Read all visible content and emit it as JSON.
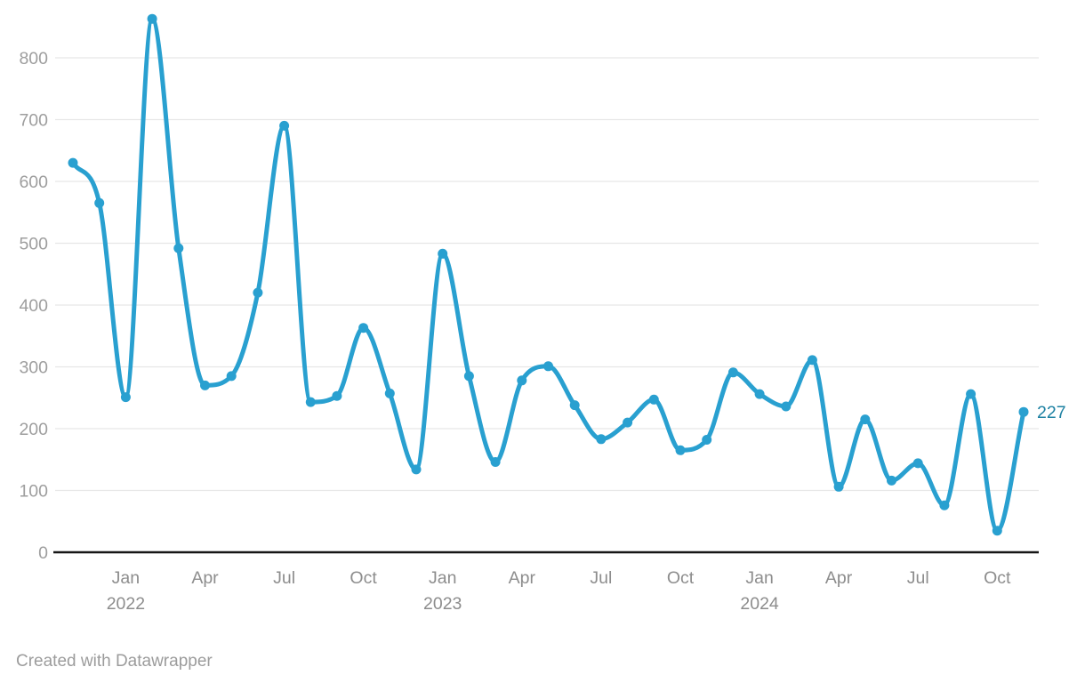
{
  "chart_data": {
    "type": "line",
    "title": "",
    "xlabel": "",
    "ylabel": "",
    "x": [
      "Nov 2021",
      "Dec 2021",
      "Jan 2022",
      "Feb 2022",
      "Mar 2022",
      "Apr 2022",
      "May 2022",
      "Jun 2022",
      "Jul 2022",
      "Aug 2022",
      "Sep 2022",
      "Oct 2022",
      "Nov 2022",
      "Dec 2022",
      "Jan 2023",
      "Feb 2023",
      "Mar 2023",
      "Apr 2023",
      "May 2023",
      "Jun 2023",
      "Jul 2023",
      "Aug 2023",
      "Sep 2023",
      "Oct 2023",
      "Nov 2023",
      "Dec 2023",
      "Jan 2024",
      "Feb 2024",
      "Mar 2024",
      "Apr 2024",
      "May 2024",
      "Jun 2024",
      "Jul 2024",
      "Aug 2024",
      "Sep 2024",
      "Oct 2024",
      "Nov 2024"
    ],
    "values": [
      630,
      565,
      251,
      863,
      492,
      270,
      285,
      420,
      690,
      243,
      253,
      363,
      257,
      134,
      483,
      285,
      146,
      278,
      301,
      238,
      183,
      210,
      247,
      165,
      182,
      291,
      256,
      236,
      311,
      106,
      215,
      116,
      144,
      76,
      256,
      35,
      227
    ],
    "last_point_label": "227",
    "y_ticks": [
      0,
      100,
      200,
      300,
      400,
      500,
      600,
      700,
      800
    ],
    "ylim": [
      0,
      880
    ],
    "x_tick_groups": [
      {
        "index": 2,
        "month": "Jan",
        "year": "2022"
      },
      {
        "index": 5,
        "month": "Apr",
        "year": ""
      },
      {
        "index": 8,
        "month": "Jul",
        "year": ""
      },
      {
        "index": 11,
        "month": "Oct",
        "year": ""
      },
      {
        "index": 14,
        "month": "Jan",
        "year": "2023"
      },
      {
        "index": 17,
        "month": "Apr",
        "year": ""
      },
      {
        "index": 20,
        "month": "Jul",
        "year": ""
      },
      {
        "index": 23,
        "month": "Oct",
        "year": ""
      },
      {
        "index": 26,
        "month": "Jan",
        "year": "2024"
      },
      {
        "index": 29,
        "month": "Apr",
        "year": ""
      },
      {
        "index": 32,
        "month": "Jul",
        "year": ""
      },
      {
        "index": 35,
        "month": "Oct",
        "year": ""
      }
    ],
    "grid": true,
    "legend": "none",
    "curve": "monotone"
  },
  "colors": {
    "line": "#29a0d0",
    "point": "#29a0d0",
    "value_label": "#1d81a2",
    "grid": "#e7e7e7",
    "axis_line": "#161616",
    "y_tick_text": "#9e9e9e",
    "x_tick_text": "#8d8d8d",
    "credit_text": "#9c9c9c",
    "background": "#ffffff"
  },
  "footer": {
    "credit": "Created with Datawrapper"
  }
}
